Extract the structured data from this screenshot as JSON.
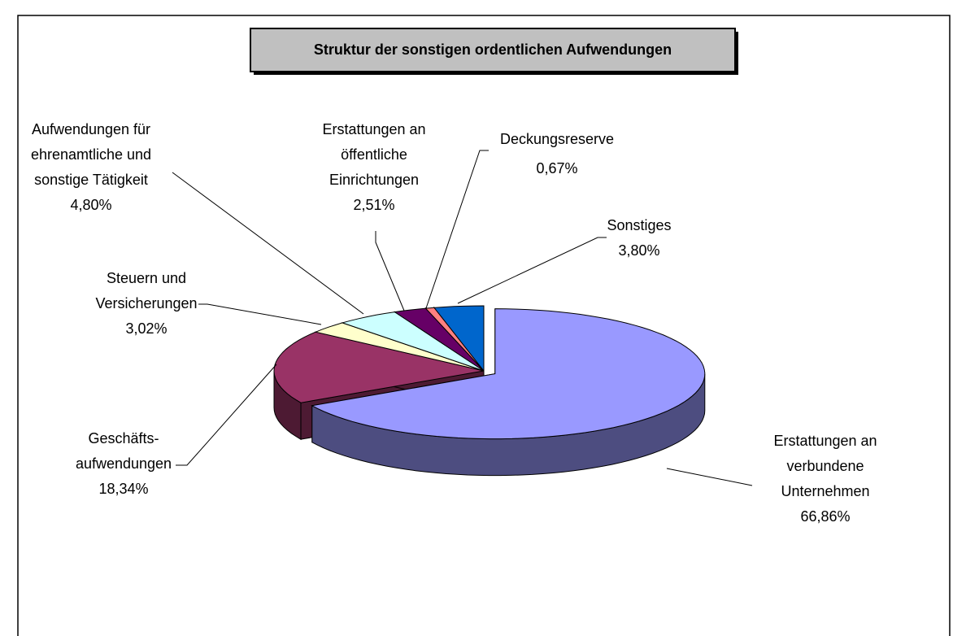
{
  "chart_data": {
    "type": "pie3d",
    "title": "Struktur der sonstigen ordentlichen Aufwendungen",
    "categories": [
      "Erstattungen an\nverbundene\nUnternehmen",
      "Geschäfts-\naufwendungen",
      "Steuern und\nVersicherungen",
      "Aufwendungen für\nehrenamtliche und\nsonstige Tätigkeit",
      "Erstattungen an\nöffentliche\nEinrichtungen",
      "Deckungsreserve",
      "Sonstiges"
    ],
    "values": [
      66.86,
      18.34,
      3.02,
      4.8,
      2.51,
      0.67,
      3.8
    ],
    "value_labels": [
      "66,86%",
      "18,34%",
      "3,02%",
      "4,80%",
      "2,51%",
      "0,67%",
      "3,80%"
    ],
    "colors": [
      "#9999ff",
      "#993366",
      "#ffffcc",
      "#ccffff",
      "#660066",
      "#ff8080",
      "#0066cc"
    ]
  }
}
